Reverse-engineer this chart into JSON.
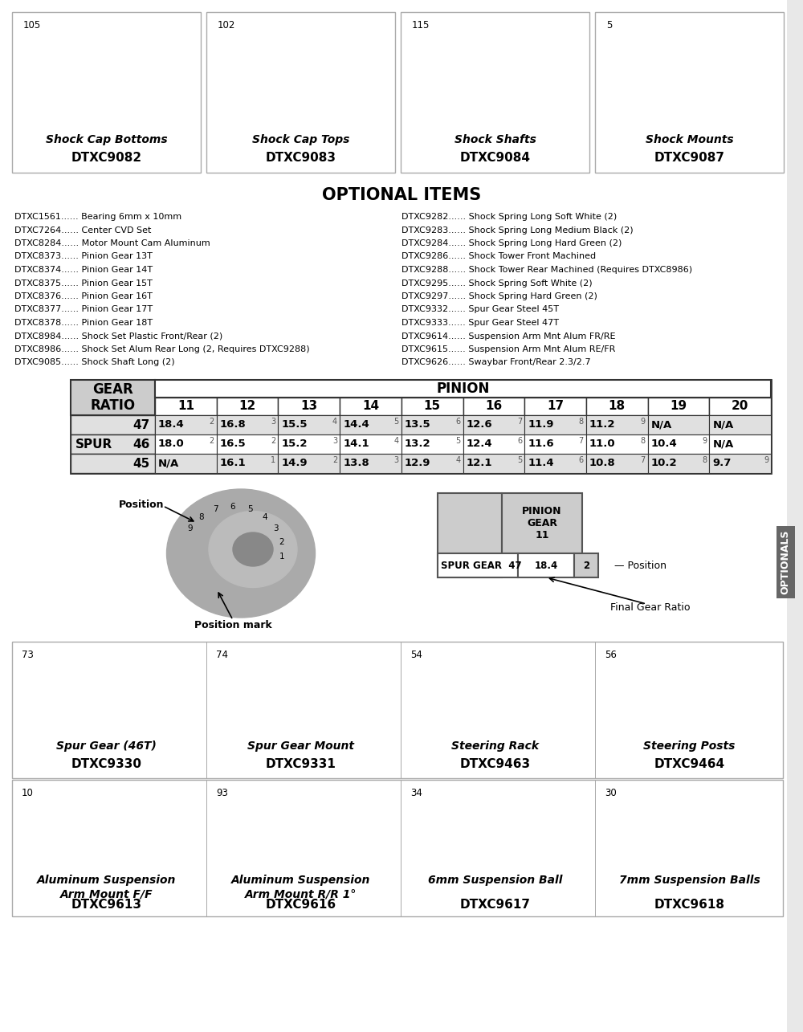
{
  "bg_color": "#e8e8e8",
  "page_bg": "#ffffff",
  "title_optional": "OPTIONAL ITEMS",
  "top_parts": [
    {
      "num": "105",
      "name": "Shock Cap Bottoms",
      "code": "DTXC9082"
    },
    {
      "num": "102",
      "name": "Shock Cap Tops",
      "code": "DTXC9083"
    },
    {
      "num": "115",
      "name": "Shock Shafts",
      "code": "DTXC9084"
    },
    {
      "num": "5",
      "name": "Shock Mounts",
      "code": "DTXC9087"
    }
  ],
  "optional_left": [
    "DTXC1561...... Bearing 6mm x 10mm",
    "DTXC7264...... Center CVD Set",
    "DTXC8284...... Motor Mount Cam Aluminum",
    "DTXC8373...... Pinion Gear 13T",
    "DTXC8374...... Pinion Gear 14T",
    "DTXC8375...... Pinion Gear 15T",
    "DTXC8376...... Pinion Gear 16T",
    "DTXC8377...... Pinion Gear 17T",
    "DTXC8378...... Pinion Gear 18T",
    "DTXC8984...... Shock Set Plastic Front/Rear (2)",
    "DTXC8986...... Shock Set Alum Rear Long (2, Requires DTXC9288)",
    "DTXC9085...... Shock Shaft Long (2)"
  ],
  "optional_right": [
    "DTXC9282...... Shock Spring Long Soft White (2)",
    "DTXC9283...... Shock Spring Long Medium Black (2)",
    "DTXC9284...... Shock Spring Long Hard Green (2)",
    "DTXC9286...... Shock Tower Front Machined",
    "DTXC9288...... Shock Tower Rear Machined (Requires DTXC8986)",
    "DTXC9295...... Shock Spring Soft White (2)",
    "DTXC9297...... Shock Spring Hard Green (2)",
    "DTXC9332...... Spur Gear Steel 45T",
    "DTXC9333...... Spur Gear Steel 47T",
    "DTXC9614...... Suspension Arm Mnt Alum FR/RE",
    "DTXC9615...... Suspension Arm Mnt Alum RE/FR",
    "DTXC9626...... Swaybar Front/Rear 2.3/2.7"
  ],
  "gear_table": {
    "pinion_cols": [
      "11",
      "12",
      "13",
      "14",
      "15",
      "16",
      "17",
      "18",
      "19",
      "20"
    ],
    "spur_rows": [
      {
        "spur": "47",
        "vals": [
          "18.4",
          "16.8",
          "15.5",
          "14.4",
          "13.5",
          "12.6",
          "11.9",
          "11.2",
          "N/A",
          "N/A"
        ],
        "pos": [
          "2",
          "3",
          "4",
          "5",
          "6",
          "7",
          "8",
          "9",
          "",
          ""
        ]
      },
      {
        "spur": "46",
        "vals": [
          "18.0",
          "16.5",
          "15.2",
          "14.1",
          "13.2",
          "12.4",
          "11.6",
          "11.0",
          "10.4",
          "N/A"
        ],
        "pos": [
          "2",
          "2",
          "3",
          "4",
          "5",
          "6",
          "7",
          "8",
          "9",
          ""
        ]
      },
      {
        "spur": "45",
        "vals": [
          "N/A",
          "16.1",
          "14.9",
          "13.8",
          "12.9",
          "12.1",
          "11.4",
          "10.8",
          "10.2",
          "9.7"
        ],
        "pos": [
          "",
          "1",
          "2",
          "3",
          "4",
          "5",
          "6",
          "7",
          "8",
          "9"
        ]
      }
    ]
  },
  "bottom_parts_row1": [
    {
      "num": "73",
      "name": "Spur Gear (46T)",
      "code": "DTXC9330"
    },
    {
      "num": "74",
      "name": "Spur Gear Mount",
      "code": "DTXC9331"
    },
    {
      "num": "54",
      "name": "Steering Rack",
      "code": "DTXC9463"
    },
    {
      "num": "56",
      "name": "Steering Posts",
      "code": "DTXC9464"
    }
  ],
  "bottom_parts_row2": [
    {
      "num": "10",
      "name": "Aluminum Suspension\nArm Mount F/F",
      "code": "DTXC9613"
    },
    {
      "num": "93",
      "name": "Aluminum Suspension\nArm Mount R/R 1°",
      "code": "DTXC9616"
    },
    {
      "num": "34",
      "name": "6mm Suspension Ball",
      "code": "DTXC9617"
    },
    {
      "num": "30",
      "name": "7mm Suspension Balls",
      "code": "DTXC9618"
    }
  ],
  "optionals_sidebar": "OPTIONALS"
}
